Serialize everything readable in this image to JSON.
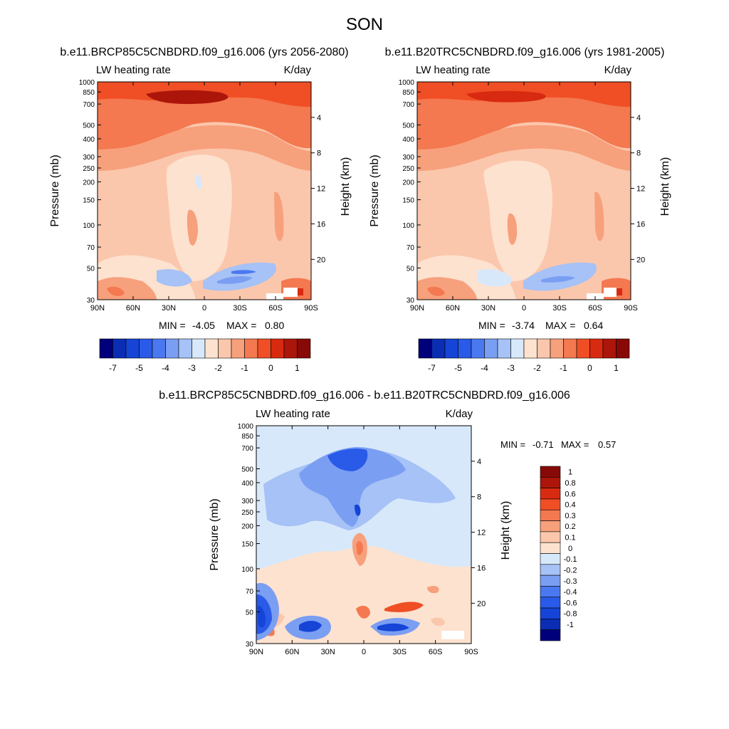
{
  "page_title": "SON",
  "colors": {
    "background": "#ffffff",
    "text": "#000000",
    "panel_palette": [
      "#00007a",
      "#0b2db4",
      "#1644d6",
      "#2a5ae8",
      "#4a78f0",
      "#7a9ef2",
      "#a6c2f6",
      "#d8e8fb",
      "#fde2cf",
      "#fbc7ac",
      "#f7a07c",
      "#f47850",
      "#f04e25",
      "#d82a10",
      "#ac160a",
      "#880a08"
    ],
    "diff_palette": [
      "#00007a",
      "#0b2db4",
      "#1644d6",
      "#2a5ae8",
      "#4a78f0",
      "#7a9ef2",
      "#a6c2f6",
      "#d8e8fb",
      "#fde2cf",
      "#fbc7ac",
      "#f7a07c",
      "#f47850",
      "#f04e25",
      "#d82a10",
      "#ac160a",
      "#880a08"
    ]
  },
  "chart_data": [
    {
      "type": "heatmap",
      "id": "future",
      "title": "b.e11.BRCP85C5CNBDRD.f09_g16.006 (yrs 2056-2080)",
      "left_label": "LW heating rate",
      "right_label": "K/day",
      "ylabel": "Pressure (mb)",
      "y2label": "Height (km)",
      "x_ticks": [
        "90N",
        "60N",
        "30N",
        "0",
        "30S",
        "60S",
        "90S"
      ],
      "y_ticks": [
        "30",
        "50",
        "70",
        "100",
        "150",
        "200",
        "250",
        "300",
        "400",
        "500",
        "700",
        "850",
        "1000"
      ],
      "y2_ticks": [
        "20",
        "16",
        "12",
        "8",
        "4"
      ],
      "stats": {
        "min_label": "MIN =",
        "min": "-4.05",
        "max_label": "MAX =",
        "max": "0.80"
      },
      "colorbar_labels": [
        "-7",
        "-5",
        "-4",
        "-3",
        "-2",
        "-1",
        "0",
        "1"
      ],
      "colorbar_orientation": "horizontal",
      "ylim": [
        1000,
        30
      ],
      "y_scale": "log",
      "xlim": [
        "90N",
        "90S"
      ]
    },
    {
      "type": "heatmap",
      "id": "historical",
      "title": "b.e11.B20TRC5CNBDRD.f09_g16.006 (yrs 1981-2005)",
      "left_label": "LW heating rate",
      "right_label": "K/day",
      "ylabel": "Pressure (mb)",
      "y2label": "Height (km)",
      "x_ticks": [
        "90N",
        "60N",
        "30N",
        "0",
        "30S",
        "60S",
        "90S"
      ],
      "y_ticks": [
        "30",
        "50",
        "70",
        "100",
        "150",
        "200",
        "250",
        "300",
        "400",
        "500",
        "700",
        "850",
        "1000"
      ],
      "y2_ticks": [
        "20",
        "16",
        "12",
        "8",
        "4"
      ],
      "stats": {
        "min_label": "MIN =",
        "min": "-3.74",
        "max_label": "MAX =",
        "max": "0.64"
      },
      "colorbar_labels": [
        "-7",
        "-5",
        "-4",
        "-3",
        "-2",
        "-1",
        "0",
        "1"
      ],
      "colorbar_orientation": "horizontal",
      "ylim": [
        1000,
        30
      ],
      "y_scale": "log",
      "xlim": [
        "90N",
        "90S"
      ]
    },
    {
      "type": "heatmap",
      "id": "difference",
      "title": "b.e11.BRCP85C5CNBDRD.f09_g16.006 - b.e11.B20TRC5CNBDRD.f09_g16.006",
      "left_label": "LW heating rate",
      "right_label": "K/day",
      "ylabel": "Pressure (mb)",
      "y2label": "Height (km)",
      "x_ticks": [
        "90N",
        "60N",
        "30N",
        "0",
        "30S",
        "60S",
        "90S"
      ],
      "y_ticks": [
        "30",
        "50",
        "70",
        "100",
        "150",
        "200",
        "250",
        "300",
        "400",
        "500",
        "700",
        "850",
        "1000"
      ],
      "y2_ticks": [
        "20",
        "16",
        "12",
        "8",
        "4"
      ],
      "stats": {
        "min_label": "MIN =",
        "min": "-0.71",
        "max_label": "MAX =",
        "max": "0.57"
      },
      "colorbar_labels": [
        "1",
        "0.8",
        "0.6",
        "0.4",
        "0.3",
        "0.2",
        "0.1",
        "0",
        "-0.1",
        "-0.2",
        "-0.3",
        "-0.4",
        "-0.6",
        "-0.8",
        "-1"
      ],
      "colorbar_orientation": "vertical",
      "ylim": [
        1000,
        30
      ],
      "y_scale": "log",
      "xlim": [
        "90N",
        "90S"
      ]
    }
  ]
}
